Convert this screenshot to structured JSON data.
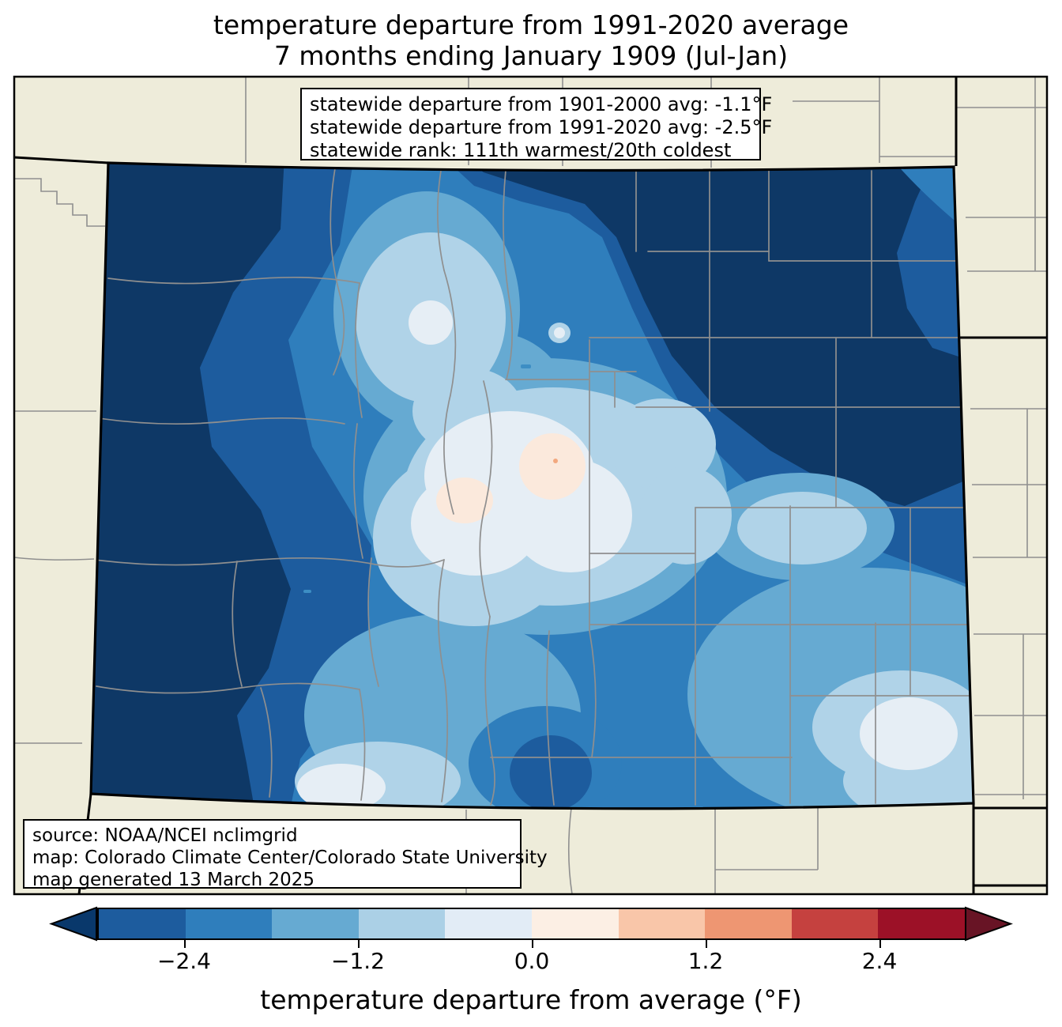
{
  "title": {
    "line1": "temperature departure from 1991-2020 average",
    "line2": "7 months ending January 1909 (Jul-Jan)"
  },
  "stats_box": {
    "line1": "statewide departure from 1901-2000 avg: -1.1°F",
    "line2": "statewide departure from 1991-2020 avg: -2.5°F",
    "line3": "statewide rank: 111th warmest/20th coldest"
  },
  "source_box": {
    "line1": "source: NOAA/NCEI nclimgrid",
    "line2": "map: Colorado Climate Center/Colorado State University",
    "line3": "map generated 13 March 2025"
  },
  "colorbar": {
    "label": "temperature departure from average (°F)",
    "ticks": [
      "−2.4",
      "−1.2",
      "0.0",
      "1.2",
      "2.4"
    ],
    "tick_values": [
      -2.4,
      -1.2,
      0.0,
      1.2,
      2.4
    ],
    "range": [
      -3.0,
      3.0
    ],
    "segment_step": 0.6,
    "segment_colors": [
      "#1d5c9e",
      "#2f7ebc",
      "#66aad2",
      "#abd0e6",
      "#e2ecf6",
      "#fcefe4",
      "#f9c6a9",
      "#ee9672",
      "#c5413f",
      "#9c1127"
    ],
    "under_color": "#09386b",
    "over_color": "#681425"
  },
  "map": {
    "state": "Colorado",
    "background_color": "#eeecda",
    "county_line_color": "#8f8f8f",
    "state_line_color": "#000000",
    "water_color": "#3d8ec4",
    "levels": [
      {
        "label": "< -3.0",
        "color": "#0e3866"
      },
      {
        "label": "-3.0 to -2.4",
        "color": "#1d5c9e"
      },
      {
        "label": "-2.4 to -1.8",
        "color": "#2f7ebc"
      },
      {
        "label": "-1.8 to -1.2",
        "color": "#66aad2"
      },
      {
        "label": "-1.2 to -0.6",
        "color": "#b0d3e8"
      },
      {
        "label": "-0.6 to 0.0",
        "color": "#e6eef5"
      },
      {
        "label": "0.0 to 0.6",
        "color": "#fbe9dc"
      },
      {
        "label": "0.6 to 1.2",
        "color": "#f2a87f"
      }
    ]
  }
}
